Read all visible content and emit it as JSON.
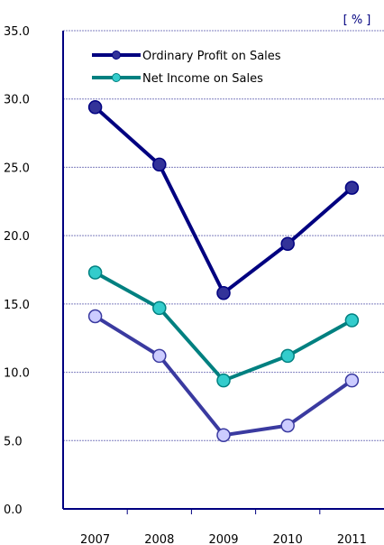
{
  "chart_data": {
    "type": "line",
    "unit_label": "[ % ]",
    "categories": [
      "2007",
      "2008",
      "2009",
      "2010",
      "2011"
    ],
    "ylim": [
      0,
      35
    ],
    "yticks": [
      "0.0",
      "5.0",
      "10.0",
      "15.0",
      "20.0",
      "25.0",
      "30.0",
      "35.0"
    ],
    "grid": true,
    "legend_position": "top-left",
    "series": [
      {
        "name": "Ordinary Profit on Sales",
        "values": [
          29.4,
          25.2,
          15.8,
          19.4,
          23.5
        ],
        "color": "#000080",
        "marker_color": "#333399",
        "in_legend": true
      },
      {
        "name": "Net Income on Sales",
        "values": [
          17.3,
          14.7,
          9.4,
          11.2,
          13.8
        ],
        "color": "#008080",
        "marker_color": "#33cccc",
        "in_legend": true
      },
      {
        "name": "",
        "values": [
          14.1,
          11.2,
          5.4,
          6.1,
          9.4
        ],
        "color": "#3a3aa0",
        "marker_color": "#ccccff",
        "in_legend": false
      }
    ]
  }
}
